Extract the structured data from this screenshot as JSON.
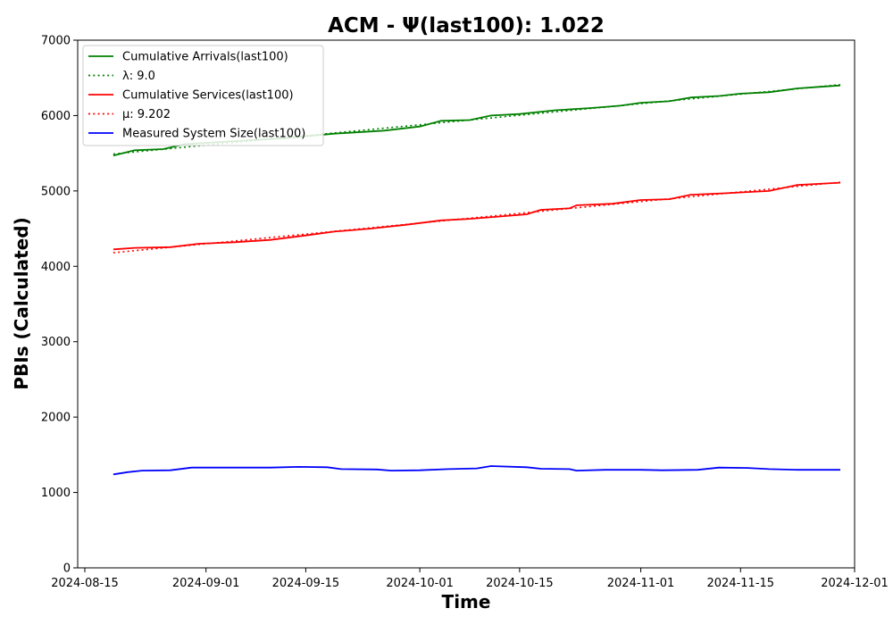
{
  "chart_data": {
    "type": "line",
    "title": "ACM -  Ψ(last100): 1.022",
    "xlabel": "Time",
    "ylabel": "PBIs (Calculated)",
    "x_axis_type": "date",
    "xlim": [
      "2024-08-14",
      "2024-12-01"
    ],
    "ylim": [
      0,
      7000
    ],
    "x_ticks": [
      "2024-08-15",
      "2024-09-01",
      "2024-09-15",
      "2024-10-01",
      "2024-10-15",
      "2024-11-01",
      "2024-11-15",
      "2024-12-01"
    ],
    "y_ticks": [
      0,
      1000,
      2000,
      3000,
      4000,
      5000,
      6000,
      7000
    ],
    "grid": false,
    "legend_position": "top-left",
    "series": [
      {
        "name": "Cumulative Arrivals(last100)",
        "color": "#008000",
        "style": "solid",
        "points": [
          [
            "2024-08-19",
            5470
          ],
          [
            "2024-08-22",
            5540
          ],
          [
            "2024-08-26",
            5555
          ],
          [
            "2024-08-29",
            5620
          ],
          [
            "2024-09-05",
            5660
          ],
          [
            "2024-09-12",
            5700
          ],
          [
            "2024-09-19",
            5760
          ],
          [
            "2024-09-26",
            5800
          ],
          [
            "2024-10-01",
            5855
          ],
          [
            "2024-10-04",
            5930
          ],
          [
            "2024-10-08",
            5940
          ],
          [
            "2024-10-11",
            6000
          ],
          [
            "2024-10-15",
            6020
          ],
          [
            "2024-10-20",
            6070
          ],
          [
            "2024-10-25",
            6100
          ],
          [
            "2024-10-29",
            6130
          ],
          [
            "2024-11-01",
            6170
          ],
          [
            "2024-11-05",
            6190
          ],
          [
            "2024-11-08",
            6240
          ],
          [
            "2024-11-12",
            6260
          ],
          [
            "2024-11-15",
            6290
          ],
          [
            "2024-11-19",
            6310
          ],
          [
            "2024-11-23",
            6360
          ],
          [
            "2024-11-26",
            6380
          ],
          [
            "2024-11-29",
            6400
          ]
        ]
      },
      {
        "name": "λ: 9.0",
        "color": "#008000",
        "style": "dotted",
        "points": [
          [
            "2024-08-19",
            5490
          ],
          [
            "2024-11-29",
            6410
          ]
        ]
      },
      {
        "name": "Cumulative Services(last100)",
        "color": "#ff0000",
        "style": "solid",
        "points": [
          [
            "2024-08-19",
            4225
          ],
          [
            "2024-08-22",
            4245
          ],
          [
            "2024-08-27",
            4255
          ],
          [
            "2024-08-31",
            4300
          ],
          [
            "2024-09-05",
            4320
          ],
          [
            "2024-09-10",
            4350
          ],
          [
            "2024-09-15",
            4410
          ],
          [
            "2024-09-19",
            4460
          ],
          [
            "2024-09-24",
            4500
          ],
          [
            "2024-09-29",
            4550
          ],
          [
            "2024-10-04",
            4610
          ],
          [
            "2024-10-08",
            4630
          ],
          [
            "2024-10-12",
            4660
          ],
          [
            "2024-10-16",
            4690
          ],
          [
            "2024-10-18",
            4750
          ],
          [
            "2024-10-22",
            4770
          ],
          [
            "2024-10-23",
            4810
          ],
          [
            "2024-10-28",
            4830
          ],
          [
            "2024-11-01",
            4880
          ],
          [
            "2024-11-05",
            4890
          ],
          [
            "2024-11-08",
            4950
          ],
          [
            "2024-11-13",
            4970
          ],
          [
            "2024-11-19",
            5000
          ],
          [
            "2024-11-23",
            5080
          ],
          [
            "2024-11-29",
            5110
          ]
        ]
      },
      {
        "name": "μ: 9.202",
        "color": "#ff0000",
        "style": "dotted",
        "points": [
          [
            "2024-08-19",
            4180
          ],
          [
            "2024-11-29",
            5115
          ]
        ]
      },
      {
        "name": "Measured System Size(last100)",
        "color": "#0000ff",
        "style": "solid",
        "points": [
          [
            "2024-08-19",
            1240
          ],
          [
            "2024-08-21",
            1270
          ],
          [
            "2024-08-23",
            1290
          ],
          [
            "2024-08-27",
            1295
          ],
          [
            "2024-08-30",
            1330
          ],
          [
            "2024-09-05",
            1330
          ],
          [
            "2024-09-10",
            1330
          ],
          [
            "2024-09-14",
            1340
          ],
          [
            "2024-09-18",
            1335
          ],
          [
            "2024-09-20",
            1310
          ],
          [
            "2024-09-25",
            1305
          ],
          [
            "2024-09-27",
            1290
          ],
          [
            "2024-10-01",
            1295
          ],
          [
            "2024-10-05",
            1310
          ],
          [
            "2024-10-09",
            1320
          ],
          [
            "2024-10-11",
            1350
          ],
          [
            "2024-10-16",
            1335
          ],
          [
            "2024-10-18",
            1315
          ],
          [
            "2024-10-22",
            1310
          ],
          [
            "2024-10-23",
            1290
          ],
          [
            "2024-10-27",
            1300
          ],
          [
            "2024-11-01",
            1300
          ],
          [
            "2024-11-04",
            1295
          ],
          [
            "2024-11-09",
            1300
          ],
          [
            "2024-11-12",
            1330
          ],
          [
            "2024-11-16",
            1325
          ],
          [
            "2024-11-19",
            1310
          ],
          [
            "2024-11-23",
            1300
          ],
          [
            "2024-11-29",
            1300
          ]
        ]
      }
    ]
  }
}
